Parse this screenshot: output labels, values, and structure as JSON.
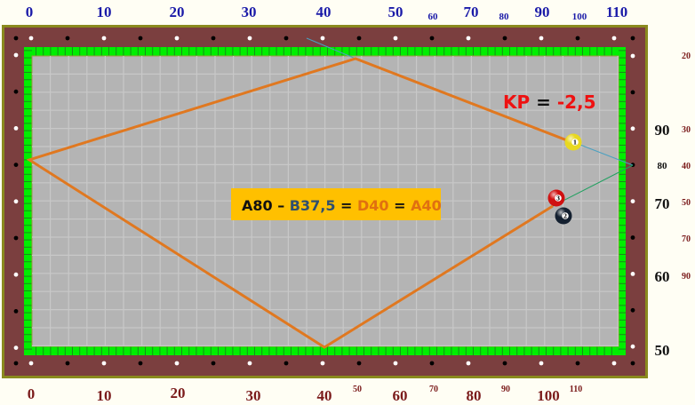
{
  "colors": {
    "rail": "#7b3f3f",
    "frame": "#8a8a1e",
    "cushion": "#00ee00",
    "cloth": "#b4b4b4",
    "shot_path": "#e07820",
    "top_labels": "#1a1aa8",
    "right_labels": "#111111",
    "red_labels": "#7a1a1a",
    "formula_bg": "#ffc000"
  },
  "top_scale": [
    "0",
    "10",
    "20",
    "30",
    "40",
    "50",
    "60",
    "70",
    "80",
    "90",
    "100",
    "110"
  ],
  "right_scale": [
    "90",
    "80",
    "70",
    "60",
    "50"
  ],
  "right_secondary_scale": [
    "20",
    "30",
    "40",
    "50",
    "70",
    "90"
  ],
  "bottom_scale": [
    "0",
    "10",
    "20",
    "30",
    "40",
    "50",
    "60",
    "70",
    "80",
    "90",
    "100",
    "110"
  ],
  "kp": {
    "label": "KP",
    "equals": " = ",
    "value": "-2,5"
  },
  "formula": {
    "part1": "A80",
    "dash": " – ",
    "part2": "B37,5",
    "eq1": " = ",
    "part3": "D40",
    "eq2": " = ",
    "part4": "A40"
  },
  "balls": [
    {
      "number": "1",
      "color": "#e8d820",
      "name": "cue-ball-yellow"
    },
    {
      "number": "3",
      "color": "#d01010",
      "name": "object-ball-red"
    },
    {
      "number": "2",
      "color": "#142030",
      "name": "object-ball-dark"
    }
  ]
}
